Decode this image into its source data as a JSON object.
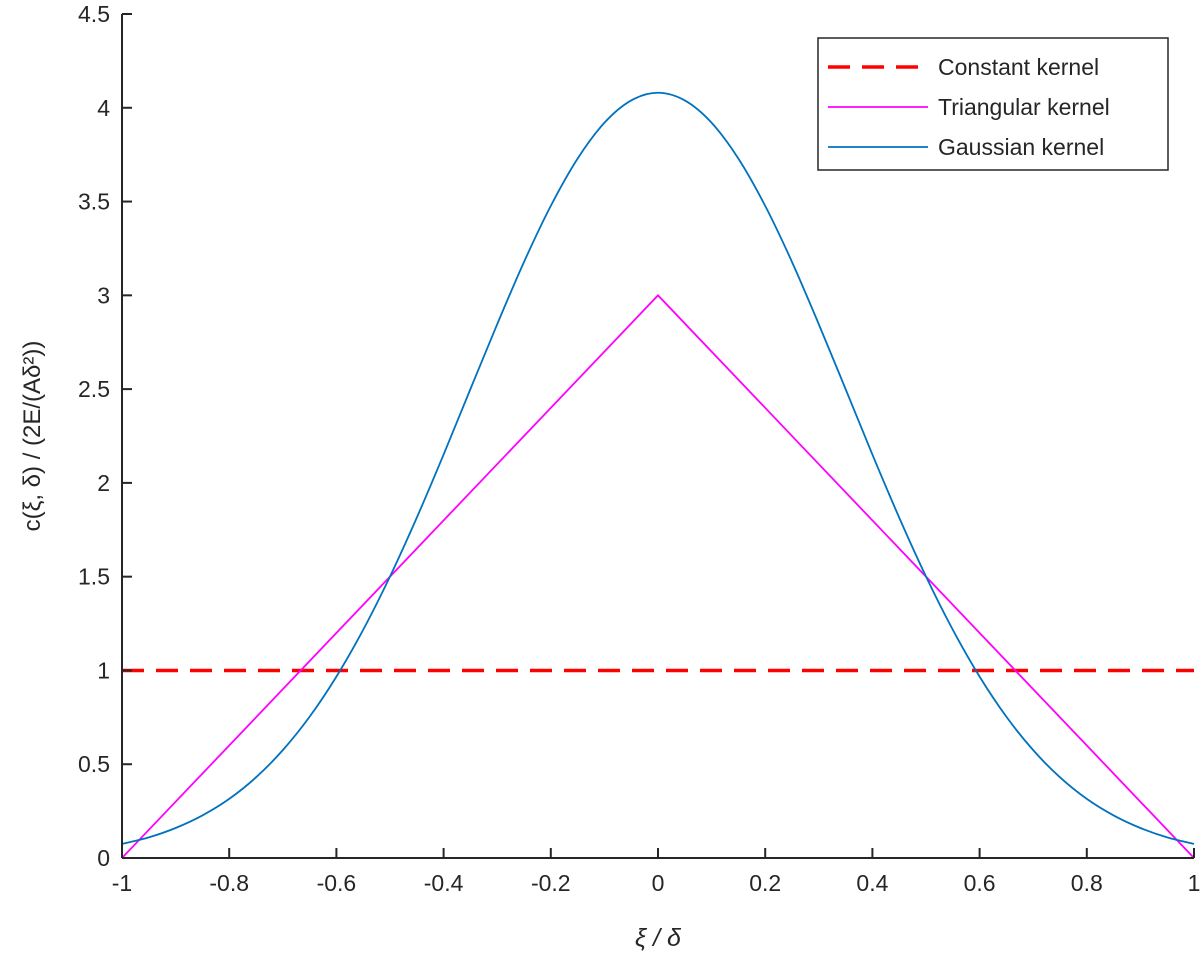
{
  "chart_data": {
    "type": "line",
    "xlabel": "ξ / δ",
    "ylabel": "c(ξ, δ) / (2E/(Aδ²))",
    "xlim": [
      -1,
      1
    ],
    "ylim": [
      0,
      4.5
    ],
    "xticks": [
      "-1",
      "-0.8",
      "-0.6",
      "-0.4",
      "-0.2",
      "0",
      "0.2",
      "0.4",
      "0.6",
      "0.8",
      "1"
    ],
    "yticks": [
      "0",
      "0.5",
      "1",
      "1.5",
      "2",
      "2.5",
      "3",
      "3.5",
      "4",
      "4.5"
    ],
    "grid": false,
    "legend_position": "top-right",
    "series": [
      {
        "name": "Constant kernel",
        "color": "#ff0000",
        "style": "dashed",
        "x": [
          -1,
          1
        ],
        "y": [
          1,
          1
        ]
      },
      {
        "name": "Triangular kernel",
        "color": "#ff00ff",
        "style": "solid",
        "x": [
          -1,
          0,
          1
        ],
        "y": [
          0,
          3,
          0
        ]
      },
      {
        "name": "Gaussian kernel",
        "color": "#0072bd",
        "style": "solid",
        "x": [
          0,
          0.05,
          0.1,
          0.15,
          0.2,
          0.25,
          0.3,
          0.35,
          0.4,
          0.45,
          0.5,
          0.55,
          0.6,
          0.65,
          0.7,
          0.75,
          0.8,
          0.85,
          0.9,
          0.95,
          1
        ],
        "y": [
          4.08,
          4.039,
          3.92,
          3.729,
          3.477,
          3.178,
          2.846,
          2.5,
          2.151,
          1.815,
          1.501,
          1.217,
          0.967,
          0.753,
          0.575,
          0.43,
          0.315,
          0.227,
          0.16,
          0.11,
          0.075
        ],
        "symmetric": true
      }
    ]
  }
}
